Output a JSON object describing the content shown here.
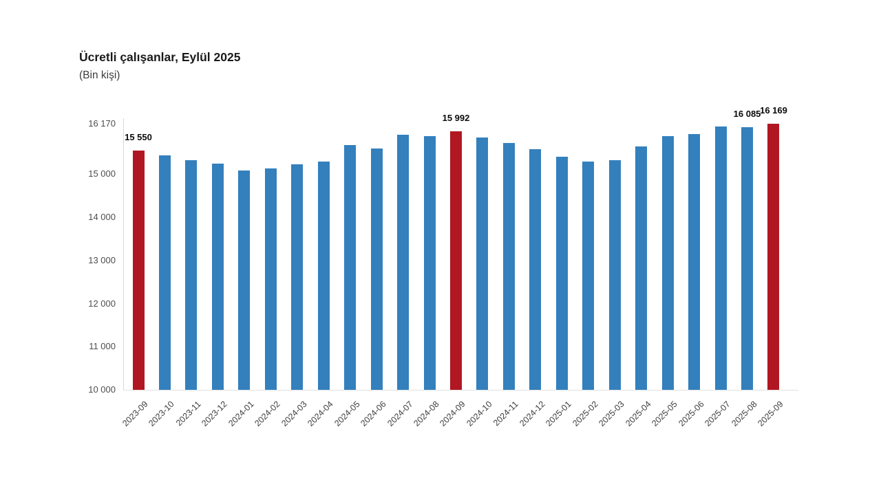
{
  "header": {
    "title": "Ücretli çalışanlar, Eylül 2025",
    "subtitle": "(Bin kişi)"
  },
  "chart_data": {
    "type": "bar",
    "title": "Ücretli çalışanlar, Eylül 2025",
    "unit_label": "(Bin kişi)",
    "categories": [
      "2023-09",
      "2023-10",
      "2023-11",
      "2023-12",
      "2024-01",
      "2024-02",
      "2024-03",
      "2024-04",
      "2024-05",
      "2024-06",
      "2024-07",
      "2024-08",
      "2024-09",
      "2024-10",
      "2024-11",
      "2024-12",
      "2025-01",
      "2025-02",
      "2025-03",
      "2025-04",
      "2025-05",
      "2025-06",
      "2025-07",
      "2025-08",
      "2025-09"
    ],
    "values": [
      15550,
      15440,
      15320,
      15250,
      15090,
      15130,
      15230,
      15290,
      15680,
      15590,
      15910,
      15890,
      15992,
      15855,
      15730,
      15575,
      15410,
      15295,
      15320,
      15650,
      15880,
      15925,
      16105,
      16085,
      16169
    ],
    "highlighted_indices": [
      0,
      12,
      24
    ],
    "data_labels": [
      {
        "index": 0,
        "text": "15 550"
      },
      {
        "index": 12,
        "text": "15 992"
      },
      {
        "index": 23,
        "text": "16 085"
      },
      {
        "index": 24,
        "text": "16 169"
      }
    ],
    "y_axis": {
      "min": 10000,
      "max": 16170,
      "ticks": [
        {
          "value": 16170,
          "label": "16 170"
        },
        {
          "value": 15000,
          "label": "15 000"
        },
        {
          "value": 14000,
          "label": "14 000"
        },
        {
          "value": 13000,
          "label": "13 000"
        },
        {
          "value": 12000,
          "label": "12 000"
        },
        {
          "value": 11000,
          "label": "11 000"
        },
        {
          "value": 10000,
          "label": "10 000"
        }
      ]
    },
    "x_axis": {
      "label_rotation_deg": -45
    },
    "colors": {
      "bar": "#3380BD",
      "highlight": "#B11722",
      "axis_line": "#D9D9D9",
      "tick_text": "#4D4D4D",
      "label_text": "#0A0A0A"
    },
    "grid": false,
    "legend": false
  }
}
